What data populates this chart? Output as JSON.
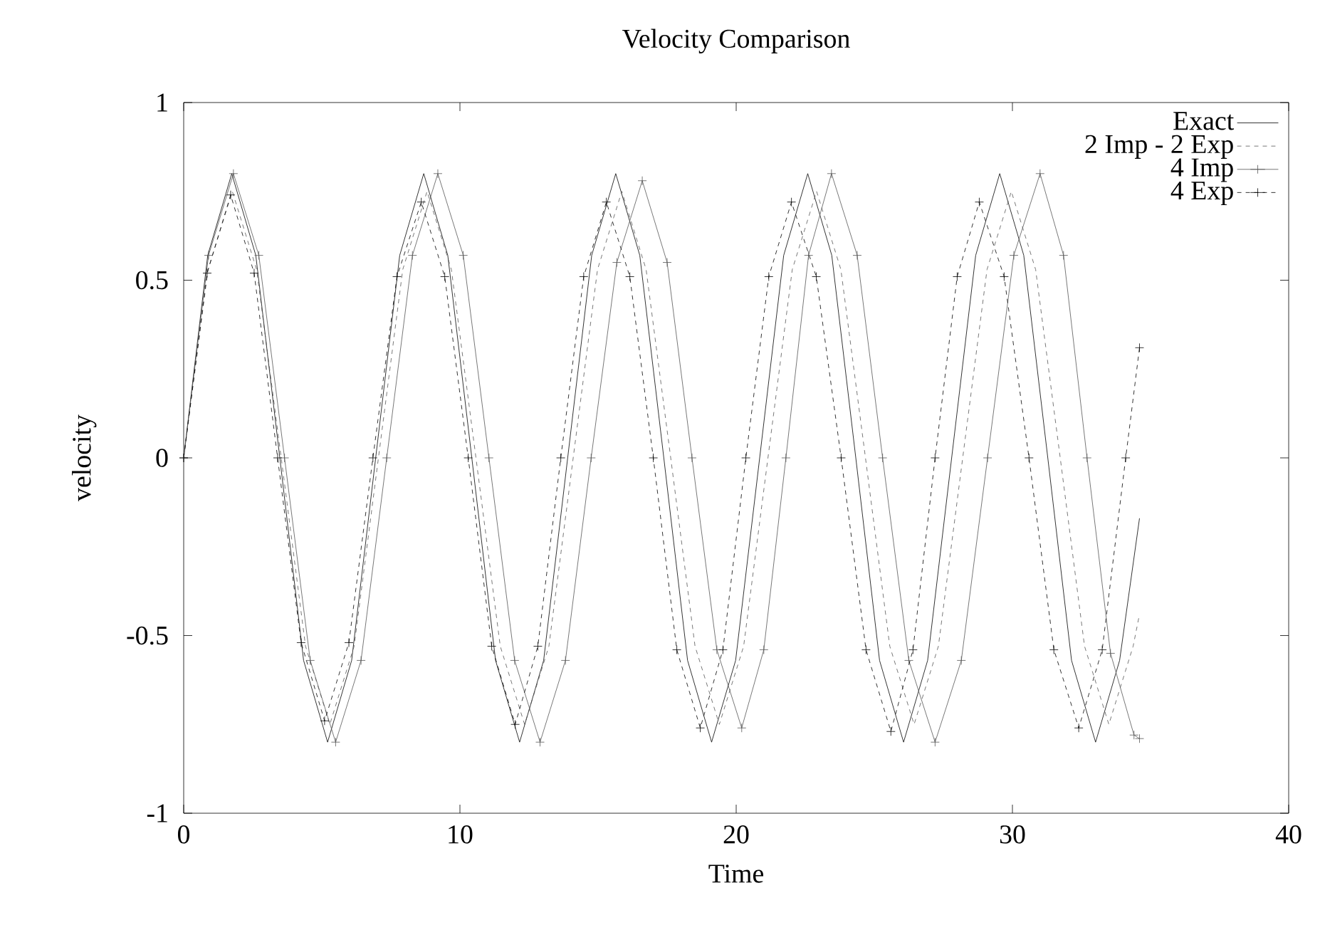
{
  "chart_data": {
    "type": "line",
    "title": "Velocity Comparison",
    "xlabel": "Time",
    "ylabel": "velocity",
    "xlim": [
      0,
      40
    ],
    "xticks": [
      0,
      10,
      20,
      30,
      40
    ],
    "ylim": [
      -1,
      1
    ],
    "yticks": [
      -1,
      -0.5,
      0,
      0.5,
      1
    ],
    "grid": false,
    "legend": "top right",
    "series": [
      {
        "name": "Exact",
        "color": "#000000",
        "line_style": "solid",
        "marker": "none",
        "x": [
          0,
          0.87,
          1.74,
          2.61,
          3.48,
          4.34,
          5.21,
          6.08,
          6.95,
          7.82,
          8.69,
          9.56,
          10.43,
          11.29,
          12.16,
          13.03,
          13.9,
          14.77,
          15.64,
          16.51,
          17.38,
          18.24,
          19.11,
          19.98,
          20.85,
          21.72,
          22.59,
          23.46,
          24.33,
          25.19,
          26.06,
          26.93,
          27.8,
          28.67,
          29.54,
          30.41,
          31.28,
          32.14,
          33.01,
          33.88,
          34.6
        ],
        "values": [
          0,
          0.57,
          0.8,
          0.57,
          0,
          -0.57,
          -0.8,
          -0.57,
          0,
          0.57,
          0.8,
          0.57,
          0,
          -0.57,
          -0.8,
          -0.57,
          0,
          0.57,
          0.8,
          0.57,
          0,
          -0.57,
          -0.8,
          -0.57,
          0,
          0.57,
          0.8,
          0.57,
          0,
          -0.57,
          -0.8,
          -0.57,
          0,
          0.57,
          0.8,
          0.57,
          0,
          -0.57,
          -0.8,
          -0.57,
          -0.17
        ]
      },
      {
        "name": "2 Imp - 2 Exp",
        "color": "#555555",
        "line_style": "dashed",
        "marker": "none",
        "x": [
          0,
          0.88,
          1.76,
          2.64,
          3.53,
          4.41,
          5.29,
          6.17,
          7.05,
          7.93,
          8.81,
          9.69,
          10.58,
          11.46,
          12.34,
          13.22,
          14.1,
          14.98,
          15.86,
          16.74,
          17.63,
          18.51,
          19.39,
          20.27,
          21.15,
          22.03,
          22.91,
          23.79,
          24.68,
          25.56,
          26.44,
          27.32,
          28.2,
          29.08,
          29.96,
          30.84,
          31.73,
          32.61,
          33.49,
          34.37,
          34.6
        ],
        "values": [
          0,
          0.53,
          0.75,
          0.53,
          0,
          -0.53,
          -0.75,
          -0.53,
          0,
          0.53,
          0.75,
          0.53,
          0,
          -0.53,
          -0.75,
          -0.53,
          0,
          0.53,
          0.75,
          0.53,
          0,
          -0.53,
          -0.75,
          -0.53,
          0,
          0.53,
          0.75,
          0.53,
          0,
          -0.53,
          -0.75,
          -0.53,
          0,
          0.53,
          0.75,
          0.53,
          0,
          -0.53,
          -0.75,
          -0.53,
          -0.44
        ]
      },
      {
        "name": "4 Imp",
        "color": "#555555",
        "line_style": "solid",
        "marker": "cross",
        "x": [
          0,
          0.9,
          1.8,
          2.72,
          3.65,
          4.58,
          5.5,
          6.42,
          7.35,
          8.28,
          9.2,
          10.12,
          11.05,
          11.98,
          12.9,
          13.82,
          14.75,
          15.68,
          16.6,
          17.5,
          18.4,
          19.3,
          20.2,
          21.0,
          21.8,
          22.62,
          23.45,
          24.38,
          25.3,
          26.25,
          27.2,
          28.15,
          29.1,
          30.05,
          31.0,
          31.85,
          32.7,
          33.55,
          34.4,
          34.6
        ],
        "values": [
          0,
          0.57,
          0.8,
          0.57,
          0,
          -0.57,
          -0.8,
          -0.57,
          0,
          0.57,
          0.8,
          0.57,
          0,
          -0.57,
          -0.8,
          -0.57,
          0,
          0.55,
          0.78,
          0.55,
          0,
          -0.54,
          -0.76,
          -0.54,
          0,
          0.57,
          0.8,
          0.57,
          0,
          -0.57,
          -0.8,
          -0.57,
          0,
          0.57,
          0.8,
          0.57,
          0,
          -0.55,
          -0.78,
          -0.79
        ]
      },
      {
        "name": "4 Exp",
        "color": "#000000",
        "line_style": "dashed",
        "marker": "cross",
        "x": [
          0,
          0.85,
          1.7,
          2.55,
          3.4,
          4.25,
          5.1,
          5.98,
          6.85,
          7.72,
          8.6,
          9.45,
          10.3,
          11.15,
          12.0,
          12.82,
          13.65,
          14.48,
          15.3,
          16.15,
          17.0,
          17.85,
          18.7,
          19.52,
          20.35,
          21.18,
          22.0,
          22.9,
          23.8,
          24.7,
          25.6,
          26.4,
          27.2,
          28.0,
          28.8,
          29.7,
          30.6,
          31.5,
          32.4,
          33.25,
          34.1,
          34.6
        ],
        "values": [
          0,
          0.52,
          0.74,
          0.52,
          0,
          -0.52,
          -0.74,
          -0.52,
          0,
          0.51,
          0.72,
          0.51,
          0,
          -0.53,
          -0.75,
          -0.53,
          0,
          0.51,
          0.72,
          0.51,
          0,
          -0.54,
          -0.76,
          -0.54,
          0,
          0.51,
          0.72,
          0.51,
          0,
          -0.54,
          -0.77,
          -0.54,
          0,
          0.51,
          0.72,
          0.51,
          0,
          -0.54,
          -0.76,
          -0.54,
          0,
          0.31
        ]
      }
    ]
  }
}
